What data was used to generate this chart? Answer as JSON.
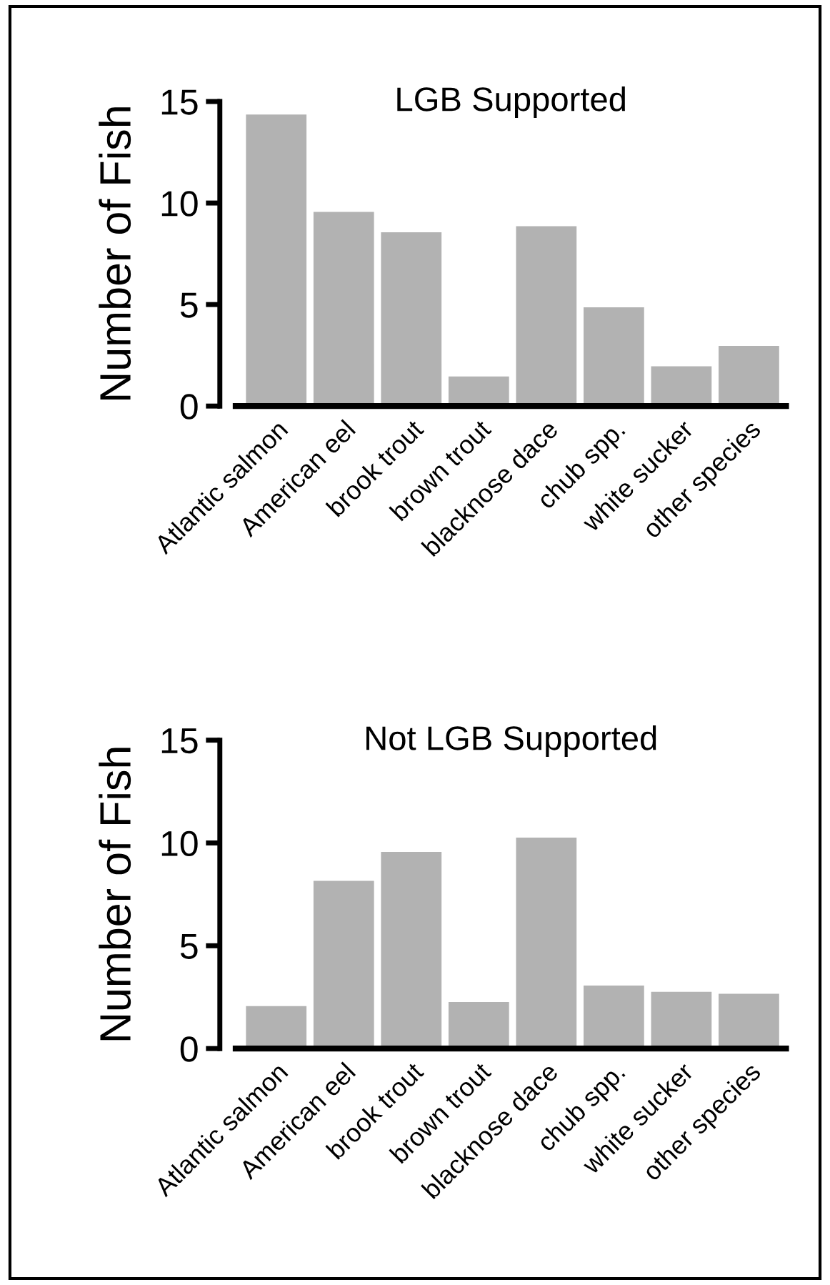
{
  "chart_data": [
    {
      "type": "bar",
      "title": "LGB Supported",
      "ylabel": "Number of Fish",
      "categories": [
        "Atlantic salmon",
        "American eel",
        "brook trout",
        "brown trout",
        "blacknose dace",
        "chub spp.",
        "white sucker",
        "other species"
      ],
      "values": [
        14.4,
        9.6,
        8.6,
        1.5,
        8.9,
        4.9,
        2.0,
        3.0
      ],
      "color": "#b2b2b2",
      "ylim": [
        0,
        15
      ],
      "yticks": [
        0,
        5,
        10,
        15
      ],
      "grid": false,
      "legend": false
    },
    {
      "type": "bar",
      "title": "Not LGB Supported",
      "ylabel": "Number of Fish",
      "categories": [
        "Atlantic salmon",
        "American eel",
        "brook trout",
        "brown trout",
        "blacknose dace",
        "chub spp.",
        "white sucker",
        "other species"
      ],
      "values": [
        2.1,
        8.2,
        9.6,
        2.3,
        10.3,
        3.1,
        2.8,
        2.7
      ],
      "color": "#b2b2b2",
      "ylim": [
        0,
        15
      ],
      "yticks": [
        0,
        5,
        10,
        15
      ],
      "grid": false,
      "legend": false
    }
  ]
}
